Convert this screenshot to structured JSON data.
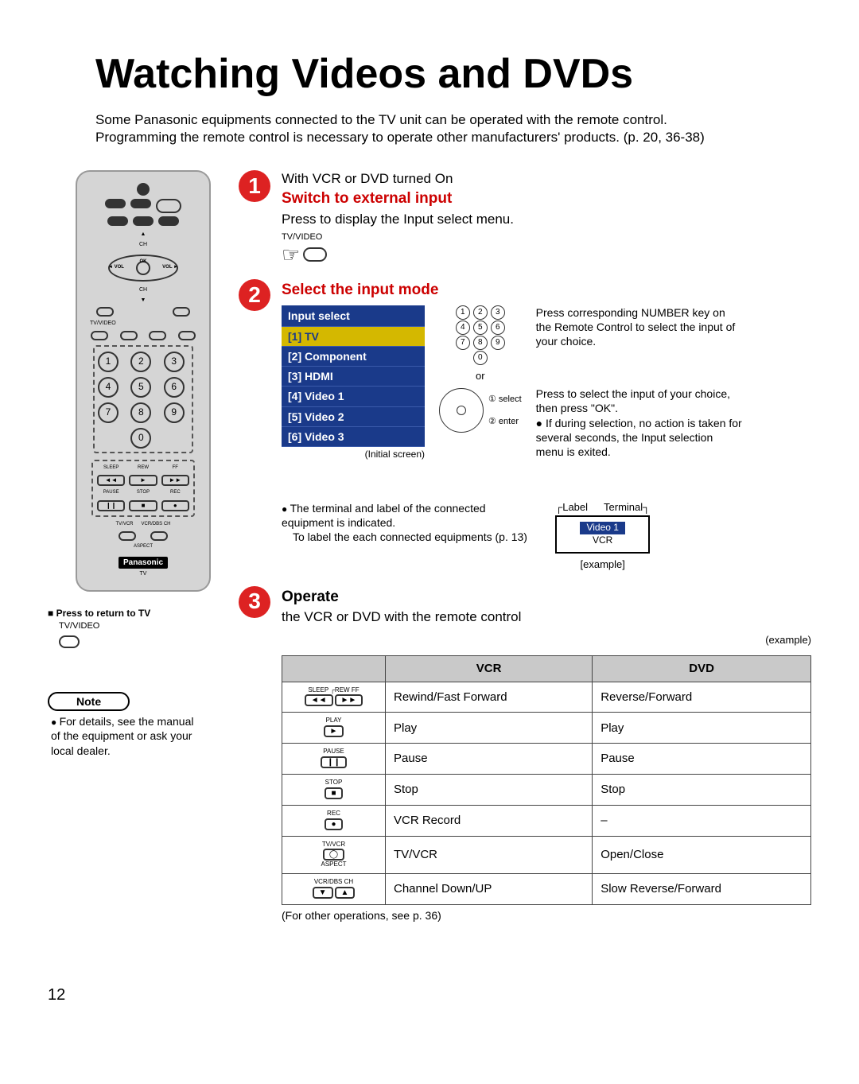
{
  "page_title": "Watching Videos and DVDs",
  "intro_line1": "Some Panasonic equipments connected to the TV unit can be operated with the remote control.",
  "intro_line2": "Programming the remote control is necessary to operate other manufacturers' products. (p. 20, 36-38)",
  "remote": {
    "ch_up": "▲",
    "ch_dn": "▼",
    "ch_lbl": "CH",
    "ok_lbl": "OK",
    "vol_l": "◄ VOL",
    "vol_r": "VOL ►",
    "tvvideo_lbl": "TV/VIDEO",
    "numpad": [
      "1",
      "2",
      "3",
      "4",
      "5",
      "6",
      "7",
      "8",
      "9",
      "",
      "0",
      ""
    ],
    "trans_top": [
      "SLEEP",
      "REW",
      "FF"
    ],
    "trans_mid": [
      "◄◄",
      "►",
      "►►"
    ],
    "trans_bot_lbls": [
      "PAUSE",
      "STOP",
      "REC"
    ],
    "trans_bot_icons": [
      "❙❙",
      "■",
      "●"
    ],
    "tvvcr_lbl": "TV/VCR",
    "vcrdbs_lbl": "VCR/DBS CH",
    "aspect_lbl": "ASPECT",
    "logo": "Panasonic",
    "tv_lbl": "TV"
  },
  "return_tv_title": "■ Press to return to TV",
  "return_tv_lbl": "TV/VIDEO",
  "note_pill": "Note",
  "note_body": "For details, see the manual of the equipment or ask your local dealer.",
  "step1": {
    "num": "1",
    "pre": "With VCR or DVD turned On",
    "title": "Switch to external input",
    "sub": "Press to display the Input select menu.",
    "tvvideo": "TV/VIDEO"
  },
  "step2": {
    "num": "2",
    "title": "Select the input mode",
    "menu_header": "Input select",
    "menu_items": [
      "[1] TV",
      "[2] Component",
      "[3] HDMI",
      "[4] Video 1",
      "[5] Video 2",
      "[6] Video 3"
    ],
    "initial": "(Initial screen)",
    "mini_nums": [
      "1",
      "2",
      "3",
      "4",
      "5",
      "6",
      "7",
      "8",
      "9",
      "",
      "0",
      ""
    ],
    "or": "or",
    "sel_lbl": "① select",
    "ent_lbl": "② enter",
    "desc_a": "Press corresponding NUMBER key on the Remote Control to select the input of your choice.",
    "desc_b1": "Press to select the input of your choice, then press \"OK\".",
    "desc_b2": "If during selection, no action is taken for several seconds, the Input selection menu is exited."
  },
  "label_term": {
    "bullet": "The terminal and label of the connected equipment is indicated.",
    "sub": "To label the each connected equipments (p. 13)",
    "label_lbl": "Label",
    "term_lbl": "Terminal",
    "box_v": "Video 1",
    "box_vcr": "VCR",
    "example": "[example]"
  },
  "step3": {
    "num": "3",
    "title": "Operate",
    "sub": "the VCR or DVD with the remote control",
    "example": "(example)",
    "table": {
      "headers": [
        "",
        "VCR",
        "DVD"
      ],
      "rows": [
        {
          "ico_top": "SLEEP ┌REW   FF",
          "ico": "◄◄  ►►",
          "vcr": "Rewind/Fast Forward",
          "dvd": "Reverse/Forward"
        },
        {
          "ico_top": "PLAY",
          "ico": "►",
          "vcr": "Play",
          "dvd": "Play"
        },
        {
          "ico_top": "PAUSE",
          "ico": "❙❙",
          "vcr": "Pause",
          "dvd": "Pause"
        },
        {
          "ico_top": "STOP",
          "ico": "■",
          "vcr": "Stop",
          "dvd": "Stop"
        },
        {
          "ico_top": "REC",
          "ico": "●",
          "vcr": "VCR Record",
          "dvd": "–"
        },
        {
          "ico_top": "TV/VCR",
          "ico": "◯",
          "ico_bot": "ASPECT",
          "vcr": "TV/VCR",
          "dvd": "Open/Close"
        },
        {
          "ico_top": "VCR/DBS CH",
          "ico": "▼  ▲",
          "vcr": "Channel Down/UP",
          "dvd": "Slow Reverse/Forward"
        }
      ]
    },
    "foot": "(For other operations, see p. 36)"
  },
  "pagenum": "12"
}
